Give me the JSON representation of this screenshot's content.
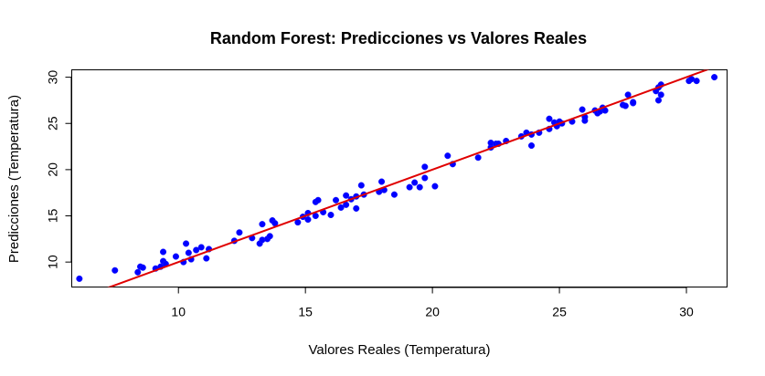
{
  "chart_data": {
    "type": "scatter",
    "title": "Random Forest: Predicciones vs Valores Reales",
    "xlabel": "Valores Reales (Temperatura)",
    "ylabel": "Predicciones (Temperatura)",
    "xlim": [
      5.8,
      31.6
    ],
    "ylim": [
      7.3,
      30.8
    ],
    "xticks": [
      10,
      15,
      20,
      25,
      30
    ],
    "yticks": [
      10,
      15,
      20,
      25,
      30
    ],
    "grid": false,
    "point_color": "#0000ff",
    "line_color": "#e00000",
    "reference_line": {
      "x": [
        5.8,
        31.6
      ],
      "y": [
        5.8,
        31.6
      ]
    },
    "points": [
      [
        6.1,
        8.2
      ],
      [
        7.5,
        9.1
      ],
      [
        8.4,
        8.9
      ],
      [
        8.5,
        9.5
      ],
      [
        8.6,
        9.4
      ],
      [
        9.1,
        9.3
      ],
      [
        9.3,
        9.5
      ],
      [
        9.4,
        10.1
      ],
      [
        9.5,
        9.8
      ],
      [
        9.4,
        11.1
      ],
      [
        9.9,
        10.6
      ],
      [
        10.2,
        10.0
      ],
      [
        10.3,
        12.0
      ],
      [
        10.4,
        11.0
      ],
      [
        10.5,
        10.3
      ],
      [
        10.7,
        11.3
      ],
      [
        10.9,
        11.6
      ],
      [
        11.1,
        10.4
      ],
      [
        11.2,
        11.4
      ],
      [
        12.2,
        12.3
      ],
      [
        12.4,
        13.2
      ],
      [
        12.9,
        12.6
      ],
      [
        13.2,
        12.0
      ],
      [
        13.3,
        12.4
      ],
      [
        13.5,
        12.5
      ],
      [
        13.3,
        14.1
      ],
      [
        13.6,
        12.8
      ],
      [
        13.7,
        14.5
      ],
      [
        13.8,
        14.2
      ],
      [
        14.7,
        14.3
      ],
      [
        14.9,
        14.9
      ],
      [
        15.1,
        14.6
      ],
      [
        15.1,
        15.3
      ],
      [
        15.4,
        15.0
      ],
      [
        15.4,
        16.5
      ],
      [
        15.5,
        16.7
      ],
      [
        15.7,
        15.4
      ],
      [
        16.0,
        15.1
      ],
      [
        16.2,
        16.7
      ],
      [
        16.4,
        15.9
      ],
      [
        16.6,
        16.2
      ],
      [
        16.6,
        17.2
      ],
      [
        16.8,
        16.8
      ],
      [
        17.0,
        17.1
      ],
      [
        17.0,
        15.8
      ],
      [
        17.2,
        18.3
      ],
      [
        17.3,
        17.3
      ],
      [
        17.9,
        17.6
      ],
      [
        18.0,
        18.7
      ],
      [
        18.1,
        17.8
      ],
      [
        18.5,
        17.3
      ],
      [
        19.1,
        18.1
      ],
      [
        19.3,
        18.6
      ],
      [
        19.5,
        18.1
      ],
      [
        19.7,
        19.1
      ],
      [
        19.7,
        20.3
      ],
      [
        20.1,
        18.2
      ],
      [
        20.6,
        21.5
      ],
      [
        20.8,
        20.6
      ],
      [
        21.8,
        21.3
      ],
      [
        22.3,
        22.4
      ],
      [
        22.3,
        22.9
      ],
      [
        22.5,
        22.8
      ],
      [
        22.6,
        22.8
      ],
      [
        22.9,
        23.1
      ],
      [
        23.5,
        23.6
      ],
      [
        23.7,
        24.0
      ],
      [
        23.9,
        23.8
      ],
      [
        23.9,
        22.6
      ],
      [
        24.2,
        24.0
      ],
      [
        24.6,
        24.4
      ],
      [
        24.6,
        25.5
      ],
      [
        24.8,
        25.1
      ],
      [
        24.9,
        24.7
      ],
      [
        25.0,
        25.2
      ],
      [
        25.1,
        25.0
      ],
      [
        25.5,
        25.2
      ],
      [
        25.9,
        26.5
      ],
      [
        26.0,
        25.3
      ],
      [
        26.0,
        25.7
      ],
      [
        26.4,
        26.4
      ],
      [
        26.5,
        26.1
      ],
      [
        26.6,
        26.3
      ],
      [
        26.7,
        26.7
      ],
      [
        26.8,
        26.4
      ],
      [
        27.5,
        27.0
      ],
      [
        27.6,
        26.9
      ],
      [
        27.7,
        28.1
      ],
      [
        27.9,
        27.2
      ],
      [
        27.9,
        27.3
      ],
      [
        28.8,
        28.5
      ],
      [
        28.9,
        27.5
      ],
      [
        28.9,
        28.9
      ],
      [
        29.0,
        28.1
      ],
      [
        29.0,
        29.2
      ],
      [
        30.1,
        29.6
      ],
      [
        30.2,
        29.8
      ],
      [
        30.4,
        29.6
      ],
      [
        31.1,
        30.0
      ]
    ]
  }
}
